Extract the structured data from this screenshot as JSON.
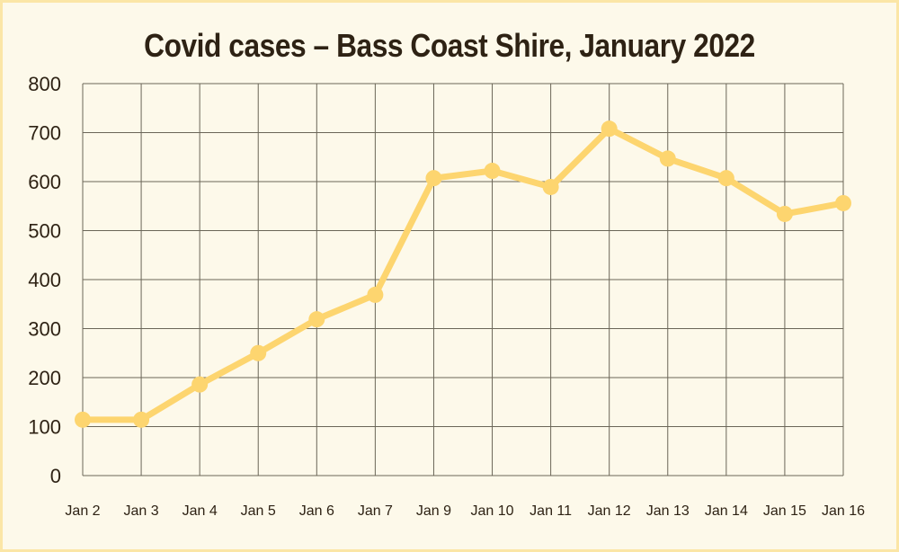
{
  "chart_data": {
    "type": "line",
    "title": "Covid cases – Bass Coast Shire, January 2022",
    "categories": [
      "Jan 2",
      "Jan 3",
      "Jan 4",
      "Jan 5",
      "Jan 6",
      "Jan 7",
      "Jan 9",
      "Jan 10",
      "Jan 11",
      "Jan 12",
      "Jan 13",
      "Jan 14",
      "Jan 15",
      "Jan 16"
    ],
    "values": [
      114,
      114,
      186,
      250,
      319,
      369,
      607,
      622,
      589,
      708,
      647,
      607,
      534,
      556
    ],
    "yticks": [
      "0",
      "100",
      "200",
      "300",
      "400",
      "500",
      "600",
      "700",
      "800"
    ],
    "ylim": [
      0,
      800
    ],
    "xlabel": "",
    "ylabel": "",
    "grid": true,
    "colors": {
      "line": "#fdd56f",
      "grid": "#6b6658",
      "background": "#fdf9ea",
      "border": "#fbe6a6",
      "text": "#2e2214"
    }
  }
}
